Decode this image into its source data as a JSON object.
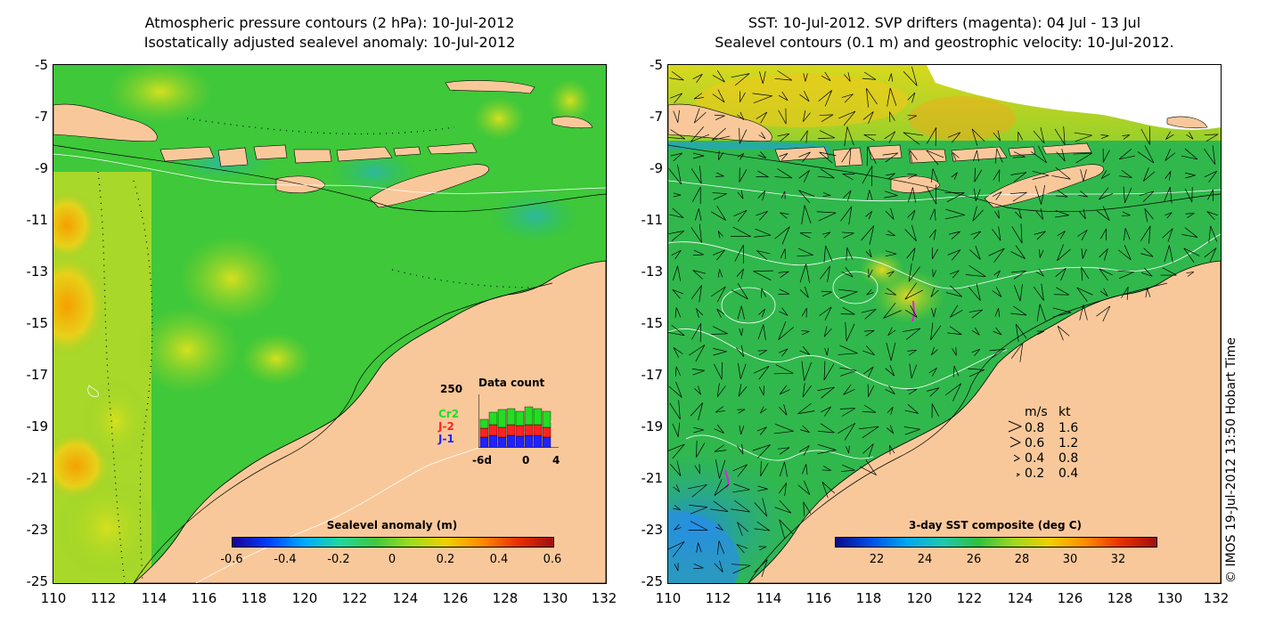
{
  "left_panel": {
    "title_line1": "Atmospheric pressure contours (2 hPa): 10-Jul-2012",
    "title_line2": "Isostatically adjusted sealevel anomaly: 10-Jul-2012",
    "colorbar": {
      "title": "Sealevel anomaly (m)",
      "ticks": [
        "-0.6",
        "-0.4",
        "-0.2",
        "0",
        "0.2",
        "0.4",
        "0.6"
      ]
    },
    "data_count": {
      "title": "Data count",
      "y_label": "250",
      "series": [
        "Cr2",
        "J-2",
        "J-1"
      ],
      "series_colors": [
        "#22dd22",
        "#ff2222",
        "#2222ff"
      ],
      "x_ticks": [
        "-6d",
        "0",
        "4"
      ]
    }
  },
  "right_panel": {
    "title_line1": "SST: 10-Jul-2012. SVP drifters (magenta): 04 Jul - 13 Jul",
    "title_line2": "Sealevel contours (0.1 m) and geostrophic velocity: 10-Jul-2012.",
    "colorbar": {
      "title": "3-day SST composite (deg C)",
      "ticks": [
        "22",
        "24",
        "26",
        "28",
        "30",
        "32"
      ]
    },
    "velocity_legend": {
      "header_ms": "m/s",
      "header_kt": "kt",
      "rows": [
        {
          "ms": "0.8",
          "kt": "1.6"
        },
        {
          "ms": "0.6",
          "kt": "1.2"
        },
        {
          "ms": "0.4",
          "kt": "0.8"
        },
        {
          "ms": "0.2",
          "kt": "0.4"
        }
      ]
    }
  },
  "axes": {
    "y_ticks": [
      "-5",
      "-7",
      "-9",
      "-11",
      "-13",
      "-15",
      "-17",
      "-19",
      "-21",
      "-23",
      "-25"
    ],
    "x_ticks": [
      "110",
      "112",
      "114",
      "116",
      "118",
      "120",
      "122",
      "124",
      "126",
      "128",
      "130",
      "132"
    ]
  },
  "copyright": "© IMOS 19-Jul-2012 13:50 Hobart Time",
  "colors": {
    "land": "#f9c89a",
    "ocean_sla": "#3cc83c",
    "ocean_sst": "#2fb84a"
  }
}
